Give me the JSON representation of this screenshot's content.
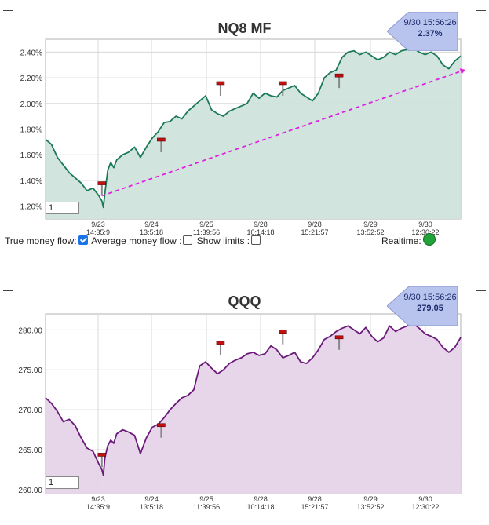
{
  "chart_data": [
    {
      "type": "area",
      "title": "NQ8 MF",
      "ylim": [
        1.1,
        2.5
      ],
      "yticks": [
        "1.20%",
        "1.40%",
        "1.60%",
        "1.80%",
        "2.00%",
        "2.20%",
        "2.40%"
      ],
      "ytick_values": [
        1.2,
        1.4,
        1.6,
        1.8,
        2.0,
        2.2,
        2.4
      ],
      "xticks": [
        {
          "date": "9/23",
          "time": "14:35:9"
        },
        {
          "date": "9/24",
          "time": "13:5:18"
        },
        {
          "date": "9/25",
          "time": "11:39:56"
        },
        {
          "date": "9/28",
          "time": "10:14:18"
        },
        {
          "date": "9/28",
          "time": "15:21:57"
        },
        {
          "date": "9/29",
          "time": "13:52:52"
        },
        {
          "date": "9/30",
          "time": "12:30:22"
        }
      ],
      "series": [
        {
          "x": [
            0,
            4,
            8,
            12,
            16,
            20,
            24,
            28,
            32,
            36,
            38,
            39,
            40,
            42,
            44,
            46,
            48,
            52,
            56,
            60,
            64,
            68,
            72,
            76,
            80,
            84,
            88,
            92,
            96,
            100,
            104,
            108,
            112,
            116,
            120,
            124,
            128,
            132,
            136,
            140,
            144,
            148,
            152,
            156,
            160,
            164,
            168,
            172,
            176,
            180,
            184,
            188,
            192,
            196,
            200,
            204,
            208,
            212,
            216,
            220,
            224,
            228,
            232,
            236,
            240,
            244,
            248,
            252,
            256,
            260,
            264,
            268,
            272,
            276,
            280
          ],
          "y": [
            1.72,
            1.68,
            1.58,
            1.52,
            1.46,
            1.42,
            1.38,
            1.32,
            1.34,
            1.28,
            1.24,
            1.19,
            1.3,
            1.48,
            1.54,
            1.5,
            1.56,
            1.6,
            1.62,
            1.66,
            1.58,
            1.66,
            1.73,
            1.78,
            1.85,
            1.86,
            1.9,
            1.88,
            1.94,
            1.98,
            2.02,
            2.06,
            1.95,
            1.92,
            1.9,
            1.94,
            1.96,
            1.98,
            2.0,
            2.08,
            2.04,
            2.08,
            2.06,
            2.05,
            2.1,
            2.12,
            2.14,
            2.08,
            2.05,
            2.02,
            2.08,
            2.2,
            2.24,
            2.26,
            2.36,
            2.4,
            2.41,
            2.38,
            2.4,
            2.37,
            2.34,
            2.36,
            2.4,
            2.38,
            2.41,
            2.42,
            2.43,
            2.4,
            2.38,
            2.4,
            2.37,
            2.3,
            2.27,
            2.33,
            2.37
          ]
        }
      ],
      "trend": {
        "x": [
          38,
          280
        ],
        "y": [
          1.28,
          2.25
        ]
      },
      "markers": [
        {
          "x": 38,
          "y": 1.28
        },
        {
          "x": 78,
          "y": 1.62
        },
        {
          "x": 118,
          "y": 2.06
        },
        {
          "x": 160,
          "y": 2.06
        },
        {
          "x": 198,
          "y": 2.12
        }
      ],
      "callout": {
        "time": "9/30 15:56:26",
        "value": "2.37%"
      },
      "input_value": "1",
      "colors": {
        "line": "#1b7a56",
        "fill": "#cfe3dc",
        "trend": "#e020e0"
      }
    },
    {
      "type": "area",
      "title": "QQQ",
      "ylim": [
        259.5,
        282
      ],
      "yticks": [
        "260.00",
        "265.00",
        "270.00",
        "275.00",
        "280.00"
      ],
      "ytick_values": [
        260,
        265,
        270,
        275,
        280
      ],
      "xticks": [
        {
          "date": "9/23",
          "time": "14:35:9"
        },
        {
          "date": "9/24",
          "time": "13:5:18"
        },
        {
          "date": "9/25",
          "time": "11:39:56"
        },
        {
          "date": "9/28",
          "time": "10:14:18"
        },
        {
          "date": "9/28",
          "time": "15:21:57"
        },
        {
          "date": "9/29",
          "time": "13:52:52"
        },
        {
          "date": "9/30",
          "time": "12:30:22"
        }
      ],
      "series": [
        {
          "x": [
            0,
            4,
            8,
            12,
            16,
            20,
            24,
            28,
            32,
            36,
            38,
            39,
            40,
            42,
            44,
            46,
            48,
            52,
            56,
            60,
            64,
            68,
            72,
            76,
            80,
            84,
            88,
            92,
            96,
            100,
            104,
            108,
            112,
            116,
            120,
            124,
            128,
            132,
            136,
            140,
            144,
            148,
            152,
            156,
            160,
            164,
            168,
            172,
            176,
            180,
            184,
            188,
            192,
            196,
            200,
            204,
            208,
            212,
            216,
            220,
            224,
            228,
            232,
            236,
            240,
            244,
            248,
            252,
            256,
            260,
            264,
            268,
            272,
            276,
            280
          ],
          "y": [
            271.5,
            270.8,
            269.8,
            268.5,
            268.8,
            268.0,
            266.5,
            265.2,
            264.8,
            263.2,
            262.5,
            261.8,
            264.0,
            265.5,
            266.2,
            265.8,
            267.0,
            267.5,
            267.2,
            266.8,
            264.5,
            266.5,
            267.8,
            268.2,
            269.0,
            270.0,
            270.8,
            271.5,
            271.8,
            272.5,
            275.5,
            276.0,
            275.2,
            274.5,
            275.0,
            275.8,
            276.2,
            276.5,
            277.0,
            277.2,
            276.8,
            277.0,
            278.0,
            277.5,
            276.5,
            276.8,
            277.2,
            276.0,
            275.8,
            276.5,
            277.5,
            278.8,
            279.2,
            279.8,
            280.2,
            280.5,
            280.0,
            279.5,
            280.3,
            279.2,
            278.5,
            279.0,
            280.5,
            279.8,
            280.2,
            280.5,
            280.8,
            280.2,
            279.5,
            279.2,
            278.8,
            277.8,
            277.2,
            277.8,
            279.05
          ]
        }
      ],
      "markers": [
        {
          "x": 38,
          "y": 262.8
        },
        {
          "x": 78,
          "y": 266.5
        },
        {
          "x": 118,
          "y": 276.8
        },
        {
          "x": 160,
          "y": 278.2
        },
        {
          "x": 198,
          "y": 277.5
        }
      ],
      "callout": {
        "time": "9/30 15:56:26",
        "value": "279.05"
      },
      "input_value": "1",
      "colors": {
        "line": "#6b1a7a",
        "fill": "#e6d4e8"
      }
    }
  ],
  "controls": {
    "true_money_flow_label": "True money flow:",
    "true_money_flow_checked": true,
    "average_money_flow_label": "Average money flow :",
    "average_money_flow_checked": false,
    "show_limits_label": "Show limits :",
    "show_limits_checked": false,
    "realtime_label": "Realtime:"
  }
}
